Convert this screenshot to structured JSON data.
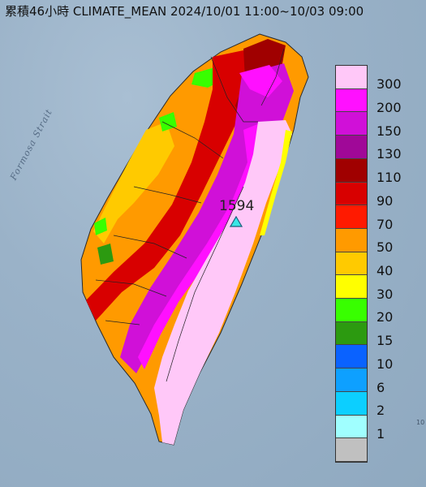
{
  "title": "累積46小時 CLIMATE_MEAN 2024/10/01 11:00~10/03 09:00",
  "map": {
    "strait_label": "Formosa Strait",
    "station_value": "1594",
    "corner_text": "10"
  },
  "legend": {
    "items": [
      {
        "label": "300",
        "color": "#ffc8f8"
      },
      {
        "label": "200",
        "color": "#ff10ff"
      },
      {
        "label": "150",
        "color": "#d010d8"
      },
      {
        "label": "130",
        "color": "#a00898"
      },
      {
        "label": "110",
        "color": "#a00000"
      },
      {
        "label": "90",
        "color": "#d80000"
      },
      {
        "label": "70",
        "color": "#ff1a00"
      },
      {
        "label": "50",
        "color": "#ff9a00"
      },
      {
        "label": "40",
        "color": "#ffca00"
      },
      {
        "label": "30",
        "color": "#ffff00"
      },
      {
        "label": "20",
        "color": "#38ff00"
      },
      {
        "label": "15",
        "color": "#2c9a10"
      },
      {
        "label": "10",
        "color": "#0a62ff"
      },
      {
        "label": "6",
        "color": "#0ea0ff"
      },
      {
        "label": "2",
        "color": "#0ccfff"
      },
      {
        "label": "1",
        "color": "#a0ffff"
      },
      {
        "label": "",
        "color": "#c0c0c0"
      }
    ]
  }
}
